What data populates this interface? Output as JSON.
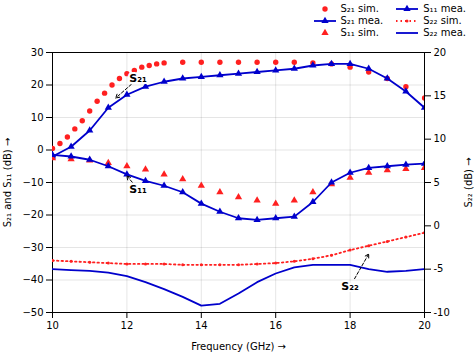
{
  "chart_data": {
    "type": "line",
    "xlabel": "Frequency (GHz)",
    "ylabel": "S₂₁ and S₁₁ (dB)",
    "y2label": "S₂₂ (dB)",
    "xlim": [
      10,
      20
    ],
    "xticks": [
      10,
      12,
      14,
      16,
      18,
      20
    ],
    "ylim": [
      -50,
      30
    ],
    "yticks": [
      -50,
      -40,
      -30,
      -20,
      -10,
      0,
      10,
      20,
      30
    ],
    "y2lim": [
      -10,
      20
    ],
    "y2ticks": [
      -10,
      -5,
      0,
      5,
      10,
      15,
      20
    ],
    "grid": true,
    "legend": "upper right",
    "series": [
      {
        "name": "S₂₁ sim.",
        "color": "#ff2020",
        "marker": "circle",
        "line_style": "none",
        "x": [
          10,
          10.2,
          10.4,
          10.6,
          10.8,
          11,
          11.2,
          11.4,
          11.6,
          11.8,
          12,
          12.2,
          12.4,
          12.6,
          12.8,
          13,
          13.5,
          14,
          14.5,
          15,
          15.5,
          16,
          16.5,
          17,
          17.5,
          18,
          18.5,
          19,
          19.5,
          20
        ],
        "values": [
          0.5,
          2,
          4,
          6.5,
          9,
          12,
          15,
          17.5,
          20,
          22,
          23.5,
          24.5,
          25.5,
          26,
          26.5,
          26.8,
          27,
          27,
          27,
          27,
          27,
          27,
          27,
          26.8,
          26.5,
          25.5,
          24,
          22,
          19.5,
          16
        ]
      },
      {
        "name": "S₂₁ mea.",
        "color": "#0000cc",
        "marker": "triangle",
        "line_style": "solid",
        "x": [
          10,
          10.5,
          11,
          11.5,
          12,
          12.5,
          13,
          13.5,
          14,
          14.5,
          15,
          15.5,
          16,
          16.5,
          17,
          17.5,
          18,
          18.5,
          19,
          19.5,
          20
        ],
        "values": [
          -2,
          1,
          6,
          13,
          17,
          19.5,
          21,
          22,
          22.5,
          23,
          23.5,
          24,
          24.5,
          25,
          26,
          26.5,
          26.5,
          25,
          22,
          18,
          13
        ]
      },
      {
        "name": "S₁₁ sim.",
        "color": "#ff2020",
        "marker": "triangle",
        "line_style": "none",
        "x": [
          10,
          10.5,
          11,
          11.5,
          12,
          12.5,
          13,
          13.5,
          14,
          14.5,
          15,
          15.5,
          16,
          16.5,
          17,
          17.5,
          18,
          18.5,
          19,
          19.5,
          20
        ],
        "values": [
          -2.5,
          -2.8,
          -3.2,
          -4.0,
          -5.0,
          -6.0,
          -7.5,
          -9.0,
          -11.0,
          -13.0,
          -14.5,
          -15.5,
          -16.5,
          -15.5,
          -13.0,
          -10.5,
          -8.5,
          -7.0,
          -6.2,
          -5.8,
          -5.5
        ]
      },
      {
        "name": "S₁₁ mea.",
        "color": "#0000cc",
        "marker": "triangle",
        "line_style": "solid",
        "x": [
          10,
          10.5,
          11,
          11.5,
          12,
          12.5,
          13,
          13.5,
          14,
          14.5,
          15,
          15.5,
          16,
          16.5,
          17,
          17.5,
          18,
          18.5,
          19,
          19.5,
          20
        ],
        "values": [
          -1.5,
          -2.0,
          -3.0,
          -5.0,
          -7.5,
          -9.5,
          -11.0,
          -13.0,
          -16.5,
          -19.0,
          -21.0,
          -21.5,
          -21.0,
          -20.5,
          -16.0,
          -10.0,
          -7.0,
          -5.5,
          -5.0,
          -4.5,
          -4.2
        ]
      },
      {
        "name": "S₂₂ sim.",
        "color": "#ff2020",
        "marker": "circle",
        "line_style": "dotted",
        "axis": "y2",
        "x": [
          10,
          10.5,
          11,
          11.5,
          12,
          12.5,
          13,
          13.5,
          14,
          14.5,
          15,
          15.5,
          16,
          16.5,
          17,
          17.5,
          18,
          18.5,
          19,
          19.5,
          20
        ],
        "values": [
          -4.0,
          -4.1,
          -4.2,
          -4.3,
          -4.4,
          -4.4,
          -4.4,
          -4.5,
          -4.5,
          -4.5,
          -4.5,
          -4.4,
          -4.3,
          -4.1,
          -3.8,
          -3.4,
          -2.8,
          -2.3,
          -1.8,
          -1.3,
          -0.8
        ]
      },
      {
        "name": "S₂₂ mea.",
        "color": "#0000cc",
        "marker": "none",
        "line_style": "solid",
        "axis": "y2",
        "x": [
          10,
          10.5,
          11,
          11.5,
          12,
          12.5,
          13,
          13.5,
          14,
          14.5,
          15,
          15.5,
          16,
          16.5,
          17,
          17.5,
          18,
          18.5,
          19,
          19.5,
          20
        ],
        "values": [
          -5.0,
          -5.1,
          -5.2,
          -5.4,
          -5.8,
          -6.5,
          -7.3,
          -8.2,
          -9.2,
          -9.0,
          -7.8,
          -6.5,
          -5.5,
          -4.8,
          -4.5,
          -4.5,
          -4.5,
          -5.0,
          -5.3,
          -5.2,
          -5.0
        ]
      }
    ],
    "annotations": [
      {
        "text": "S₂₁",
        "x": 12.3,
        "y": 22,
        "arrow_to": [
          11.7,
          16
        ]
      },
      {
        "text": "S₁₁",
        "x": 12.3,
        "y": -12,
        "arrow_to": [
          12.0,
          -8
        ]
      },
      {
        "text": "S₂₂",
        "x": 18.0,
        "y": -42,
        "arrow_to": [
          18.5,
          -32
        ]
      }
    ]
  }
}
